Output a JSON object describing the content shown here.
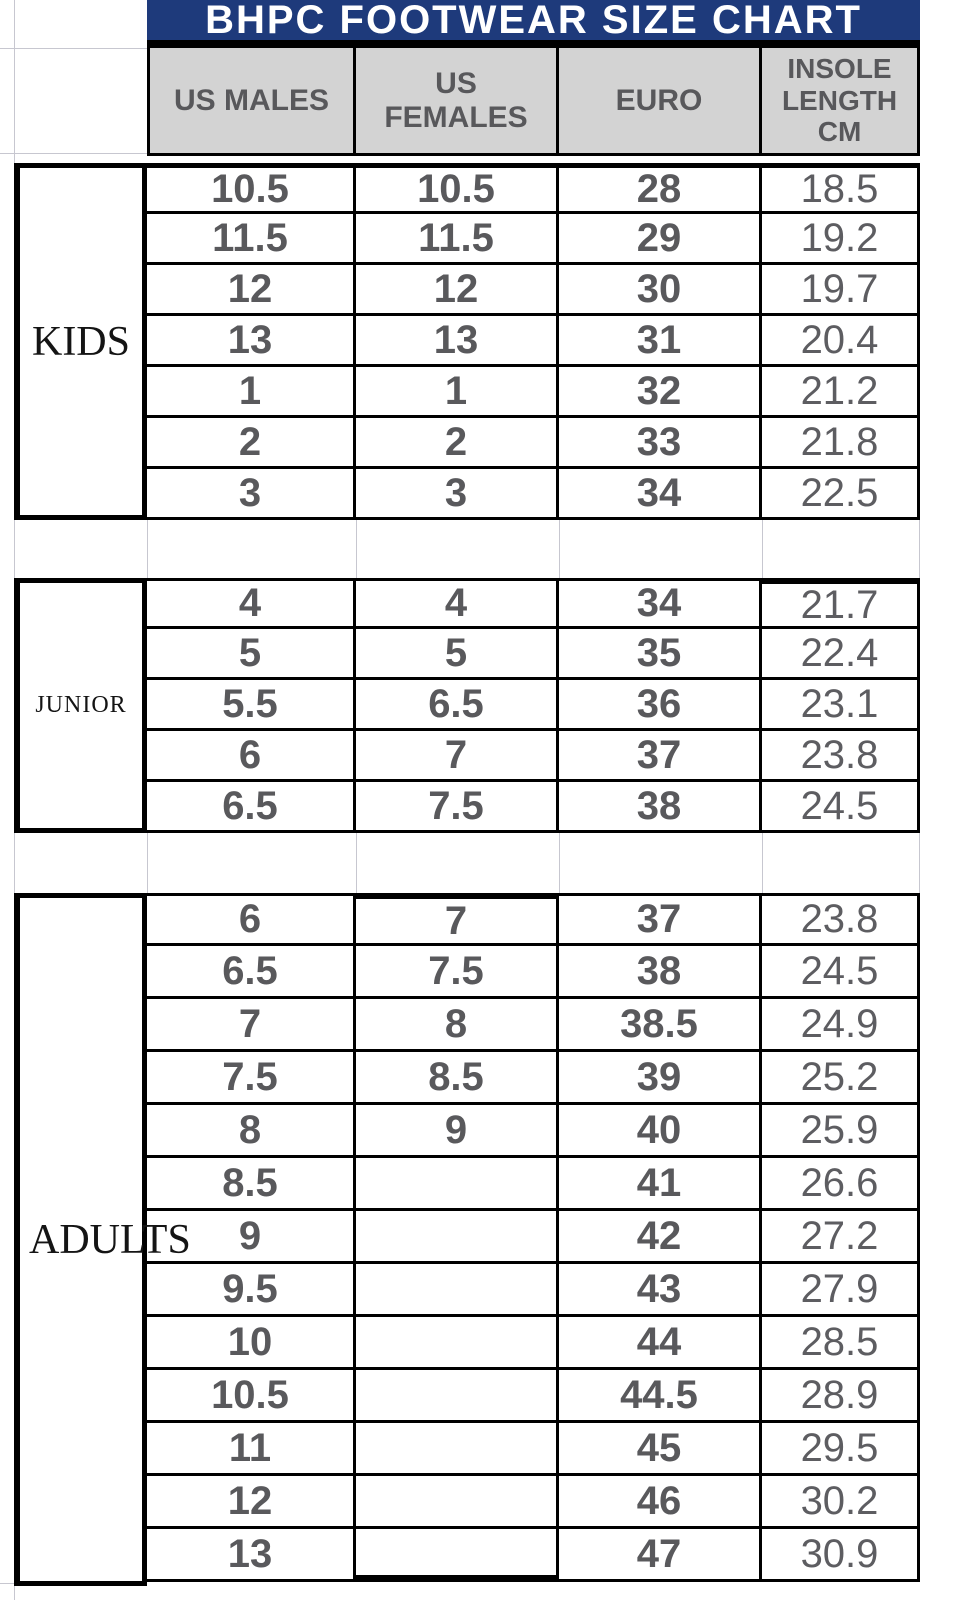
{
  "title": "BHPC FOOTWEAR SIZE CHART",
  "chart_data": {
    "type": "table",
    "title": "BHPC FOOTWEAR SIZE CHART",
    "columns": [
      "US MALES",
      "US FEMALES",
      "EURO",
      "INSOLE LENGTH CM"
    ],
    "sections": [
      {
        "label": "KIDS",
        "rows": [
          [
            "10.5",
            "10.5",
            "28",
            "18.5"
          ],
          [
            "11.5",
            "11.5",
            "29",
            "19.2"
          ],
          [
            "12",
            "12",
            "30",
            "19.7"
          ],
          [
            "13",
            "13",
            "31",
            "20.4"
          ],
          [
            "1",
            "1",
            "32",
            "21.2"
          ],
          [
            "2",
            "2",
            "33",
            "21.8"
          ],
          [
            "3",
            "3",
            "34",
            "22.5"
          ]
        ]
      },
      {
        "label": "JUNIOR",
        "rows": [
          [
            "4",
            "4",
            "34",
            "21.7"
          ],
          [
            "5",
            "5",
            "35",
            "22.4"
          ],
          [
            "5.5",
            "6.5",
            "36",
            "23.1"
          ],
          [
            "6",
            "7",
            "37",
            "23.8"
          ],
          [
            "6.5",
            "7.5",
            "38",
            "24.5"
          ]
        ]
      },
      {
        "label": "ADULTS",
        "rows": [
          [
            "6",
            "7",
            "37",
            "23.8"
          ],
          [
            "6.5",
            "7.5",
            "38",
            "24.5"
          ],
          [
            "7",
            "8",
            "38.5",
            "24.9"
          ],
          [
            "7.5",
            "8.5",
            "39",
            "25.2"
          ],
          [
            "8",
            "9",
            "40",
            "25.9"
          ],
          [
            "8.5",
            "",
            "41",
            "26.6"
          ],
          [
            "9",
            "",
            "42",
            "27.2"
          ],
          [
            "9.5",
            "",
            "43",
            "27.9"
          ],
          [
            "10",
            "",
            "44",
            "28.5"
          ],
          [
            "10.5",
            "",
            "44.5",
            "28.9"
          ],
          [
            "11",
            "",
            "45",
            "29.5"
          ],
          [
            "12",
            "",
            "46",
            "30.2"
          ],
          [
            "13",
            "",
            "47",
            "30.9"
          ]
        ]
      }
    ]
  },
  "colors": {
    "title_bg": "#1e3a7b",
    "title_text": "#ffffff",
    "header_bg": "#d3d3d3",
    "cell_text": "#59595c",
    "border": "#000000",
    "gridline": "#c7c7d0"
  }
}
